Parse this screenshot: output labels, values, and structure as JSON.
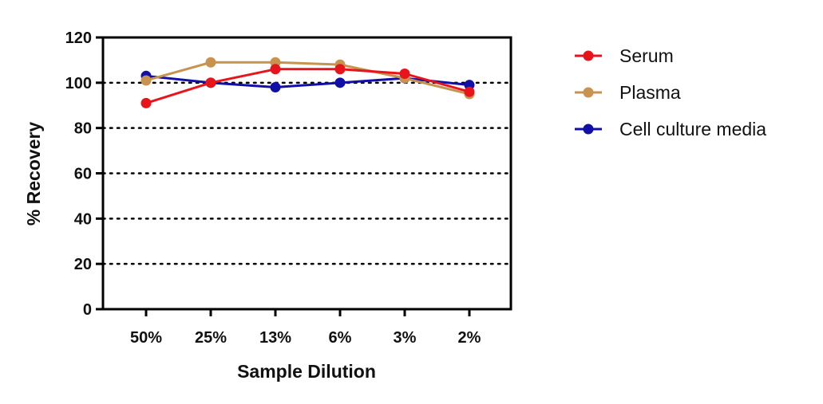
{
  "chart_data": {
    "type": "line",
    "categories": [
      "50%",
      "25%",
      "13%",
      "6%",
      "3%",
      "2%"
    ],
    "xlabel": "Sample Dilution",
    "ylabel": "% Recovery",
    "ylim": [
      0,
      120
    ],
    "yticks": [
      0,
      20,
      40,
      60,
      80,
      100,
      120
    ],
    "grid": "horizontal dotted",
    "legend_position": "right",
    "series": [
      {
        "name": "Serum",
        "color": "#e8141b",
        "values": [
          91,
          100,
          106,
          106,
          104,
          96
        ]
      },
      {
        "name": "Plasma",
        "color": "#c8924f",
        "values": [
          101,
          109,
          109,
          108,
          102,
          95
        ]
      },
      {
        "name": "Cell culture media",
        "color": "#1010a8",
        "values": [
          103,
          100,
          98,
          100,
          102,
          99
        ]
      }
    ],
    "draw_order": [
      2,
      1,
      0
    ]
  }
}
